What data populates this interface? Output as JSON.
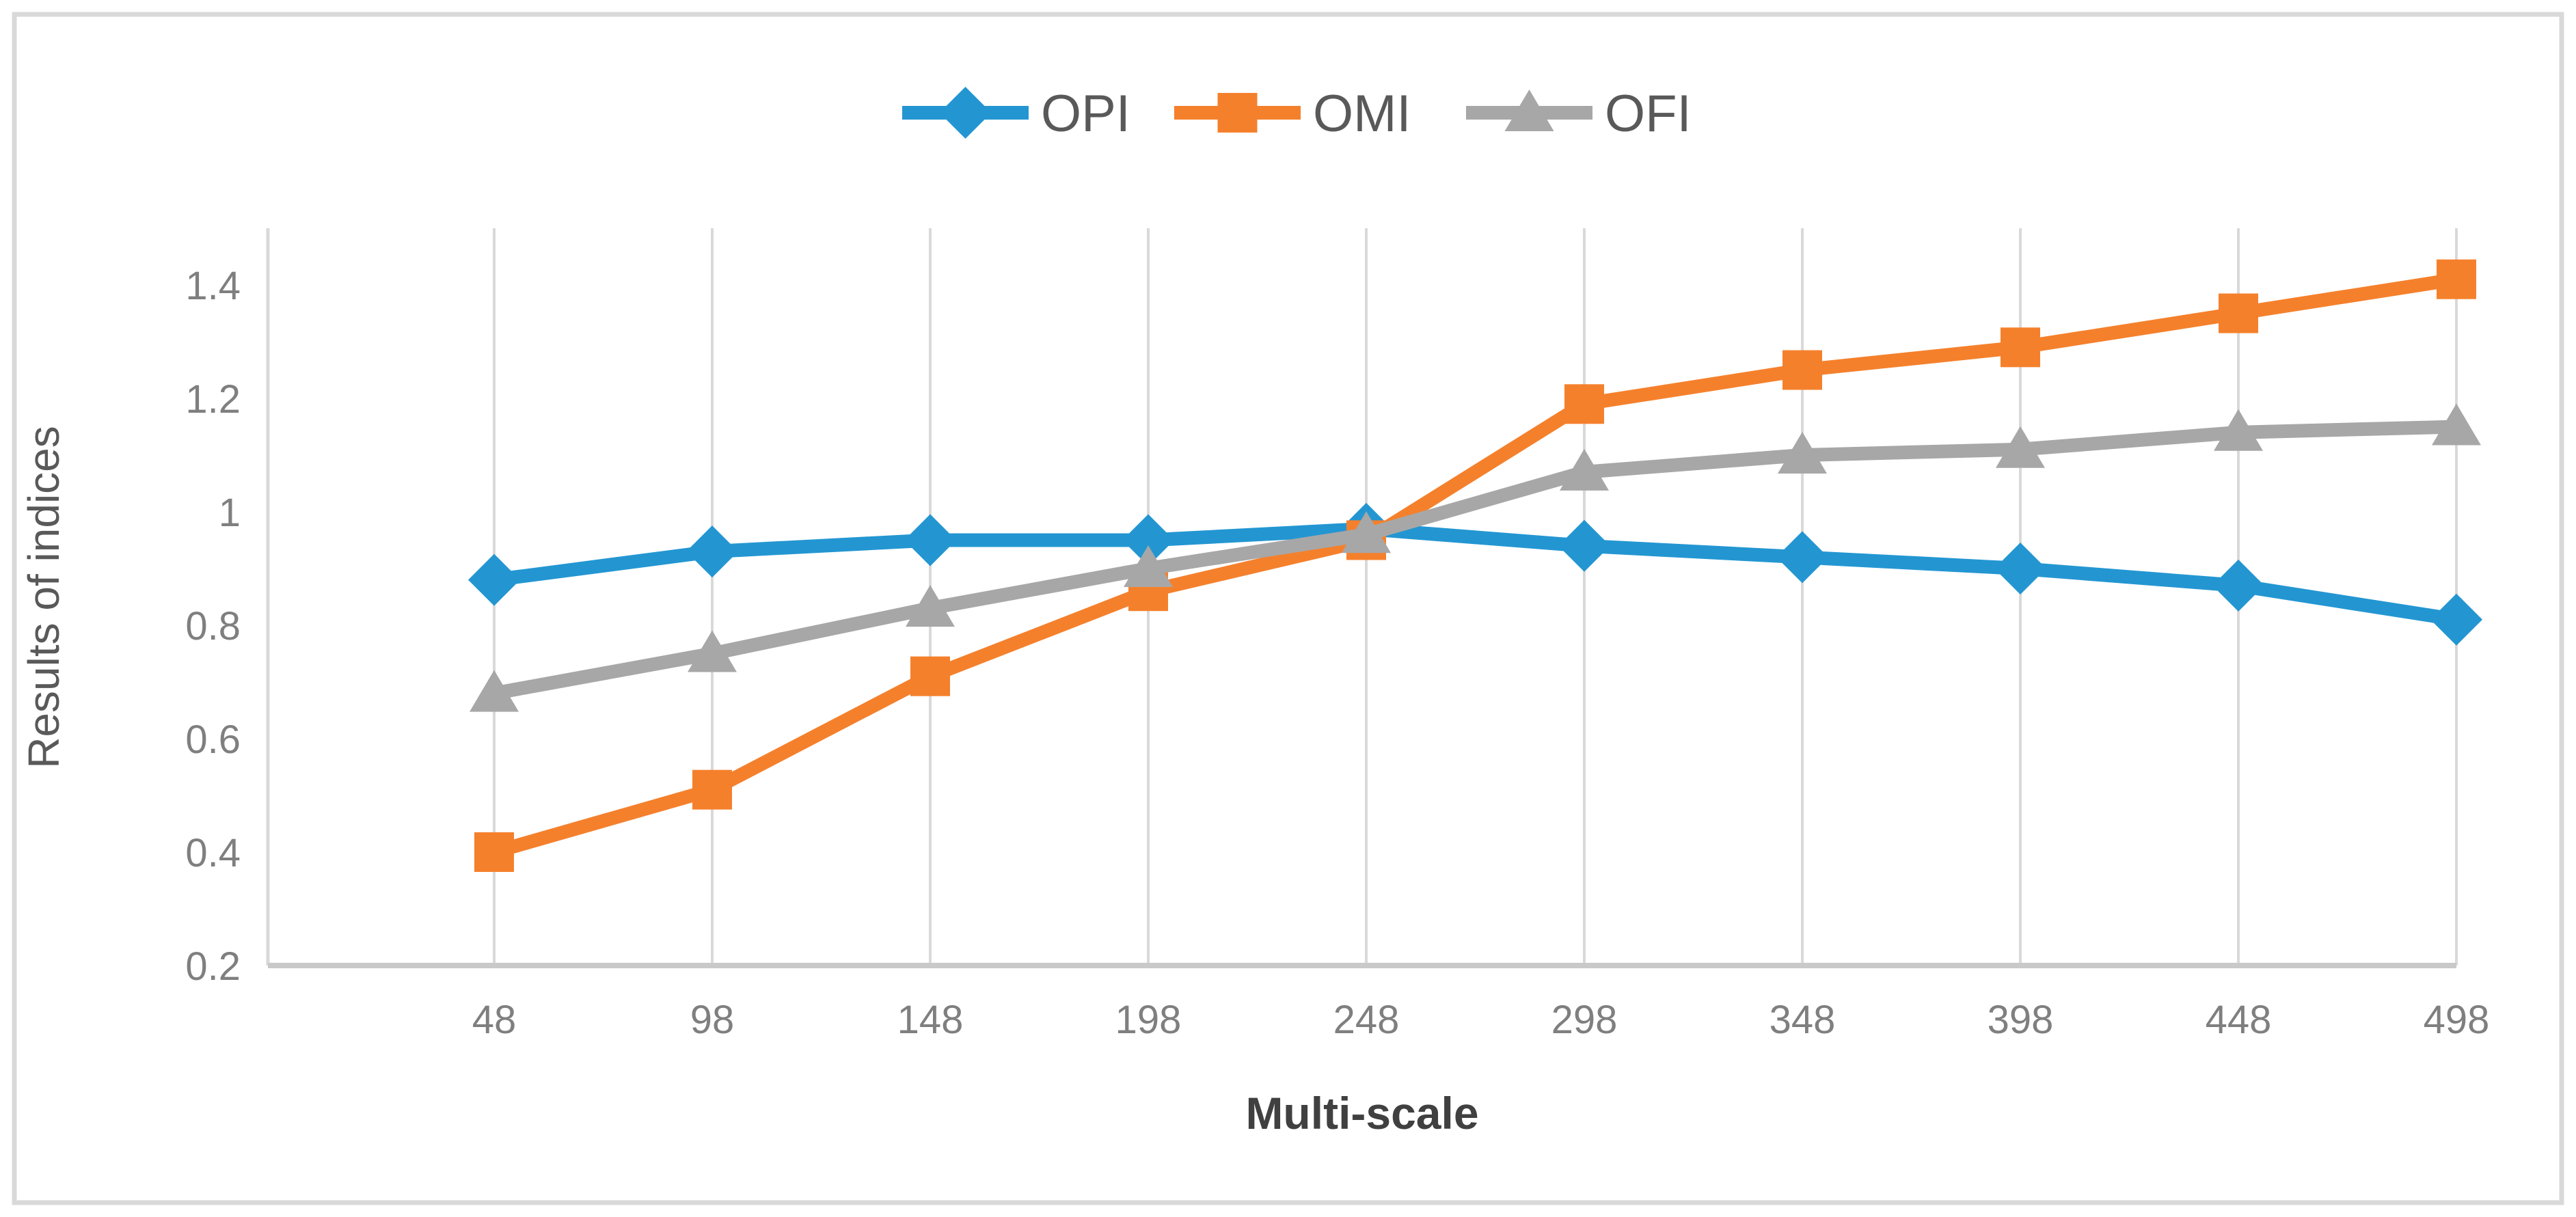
{
  "chart_data": {
    "type": "line",
    "title": "",
    "xlabel": "Multi-scale",
    "ylabel": "Results of indices",
    "x_categories": [
      "48",
      "98",
      "148",
      "198",
      "248",
      "298",
      "348",
      "398",
      "448",
      "498"
    ],
    "series": [
      {
        "name": "OPI",
        "marker": "diamond",
        "color": "#2396D2",
        "values": [
          0.88,
          0.93,
          0.95,
          0.95,
          0.97,
          0.94,
          0.92,
          0.9,
          0.87,
          0.81
        ]
      },
      {
        "name": "OMI",
        "marker": "square",
        "color": "#F5802C",
        "values": [
          0.4,
          0.51,
          0.71,
          0.86,
          0.95,
          1.19,
          1.25,
          1.29,
          1.35,
          1.41
        ]
      },
      {
        "name": "OFI",
        "marker": "triangle",
        "color": "#A7A7A7",
        "values": [
          0.68,
          0.75,
          0.83,
          0.9,
          0.96,
          1.07,
          1.1,
          1.11,
          1.14,
          1.15
        ]
      }
    ],
    "ylim": [
      0.2,
      1.5
    ],
    "yticks": [
      "0.2",
      "0.4",
      "0.6",
      "0.8",
      "1",
      "1.2",
      "1.4"
    ],
    "ytick_values": [
      0.2,
      0.4,
      0.6,
      0.8,
      1.0,
      1.2,
      1.4
    ],
    "grid": "vertical-only",
    "legend_position": "top-center"
  },
  "colors": {
    "background": "#FFFFFF",
    "figure_border": "#D9D9D9",
    "gridline": "#D9D9D9",
    "y_axis_line": "#D9D9D9",
    "x_axis_line": "#C9C9C9",
    "tick_label": "#7F7F7F",
    "y_axis_title": "#595959",
    "x_axis_title": "#404040",
    "legend_text": "#595959"
  }
}
